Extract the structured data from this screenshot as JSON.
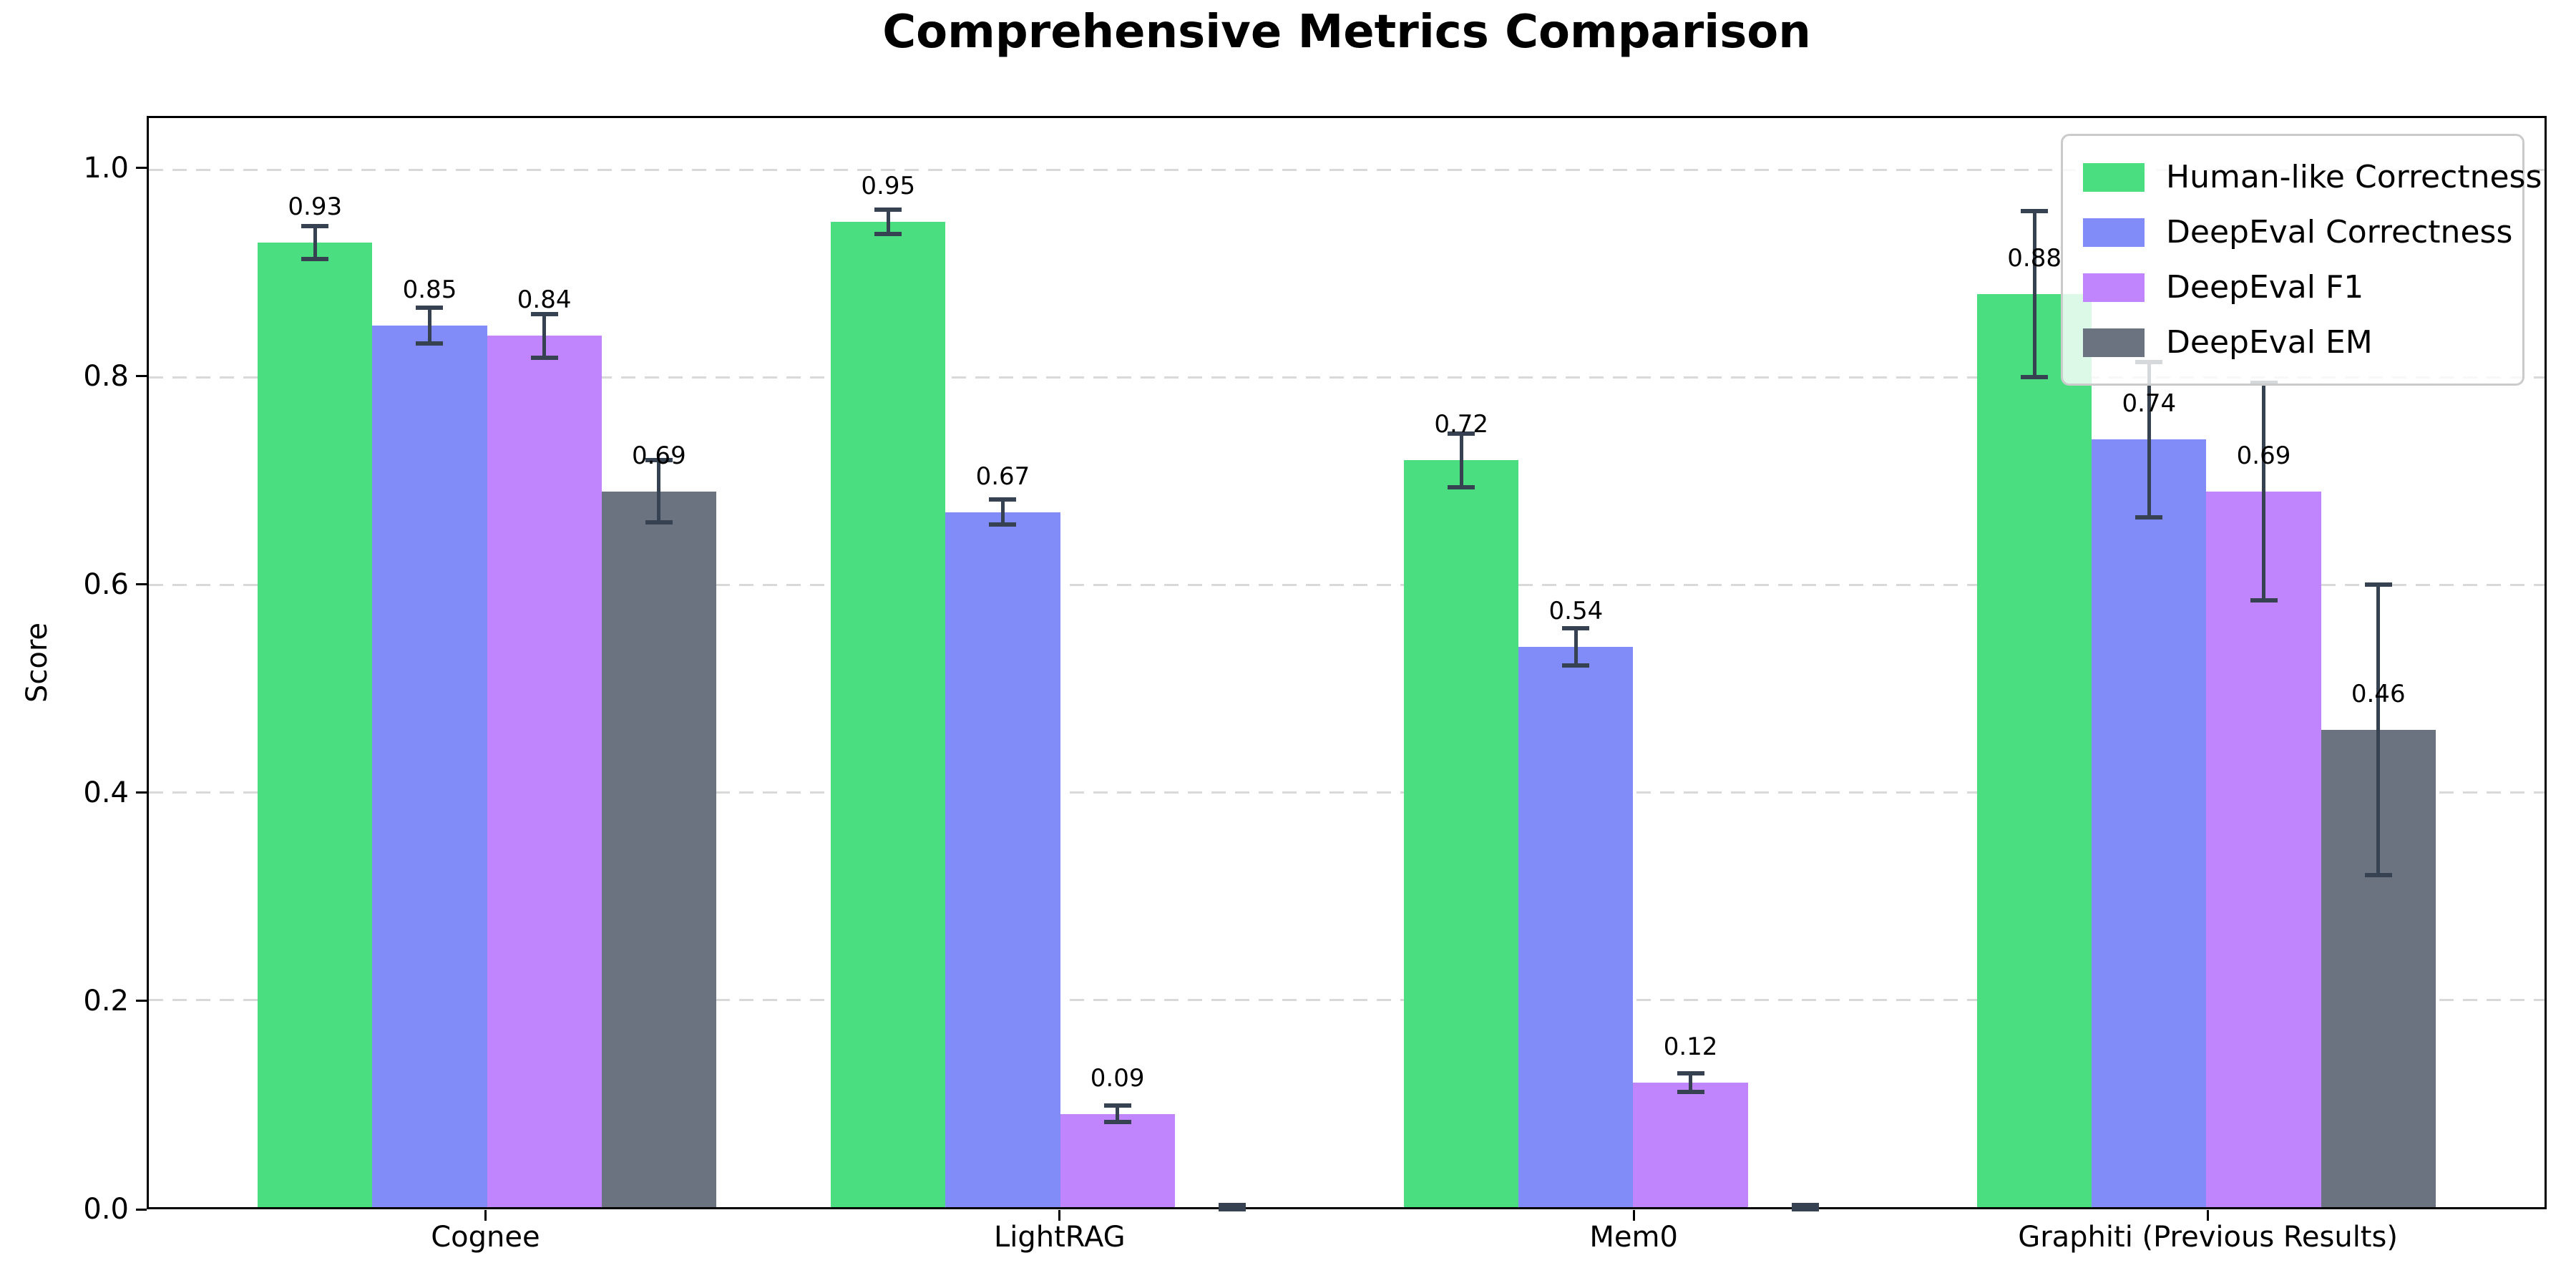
{
  "chart_data": {
    "type": "bar",
    "title": "Comprehensive Metrics Comparison",
    "ylabel": "Score",
    "xlabel": "",
    "categories": [
      "Cognee",
      "LightRAG",
      "Mem0",
      "Graphiti (Previous Results)"
    ],
    "series": [
      {
        "name": "Human-like Correctness",
        "color": "#4ade80",
        "values": [
          0.93,
          0.95,
          0.72,
          0.88
        ],
        "errors": [
          0.016,
          0.012,
          0.026,
          0.08
        ],
        "labels": [
          "0.93",
          "0.95",
          "0.72",
          "0.88"
        ]
      },
      {
        "name": "DeepEval Correctness",
        "color": "#818cf8",
        "values": [
          0.85,
          0.67,
          0.54,
          0.74
        ],
        "errors": [
          0.017,
          0.012,
          0.018,
          0.075
        ],
        "labels": [
          "0.85",
          "0.67",
          "0.54",
          "0.74"
        ]
      },
      {
        "name": "DeepEval F1",
        "color": "#c084fc",
        "values": [
          0.84,
          0.09,
          0.12,
          0.69
        ],
        "errors": [
          0.021,
          0.008,
          0.009,
          0.105
        ],
        "labels": [
          "0.84",
          "0.09",
          "0.12",
          "0.69"
        ]
      },
      {
        "name": "DeepEval EM",
        "color": "#6b7280",
        "values": [
          0.69,
          0.0,
          0.0,
          0.46
        ],
        "errors": [
          0.03,
          0.002,
          0.002,
          0.14
        ],
        "labels": [
          "0.69",
          "",
          "",
          "0.46"
        ]
      }
    ],
    "yticks": [
      {
        "label": "0.0",
        "value": 0.0
      },
      {
        "label": "0.2",
        "value": 0.2
      },
      {
        "label": "0.4",
        "value": 0.4
      },
      {
        "label": "0.6",
        "value": 0.6
      },
      {
        "label": "0.8",
        "value": 0.8
      },
      {
        "label": "1.0",
        "value": 1.0
      }
    ],
    "ylim": [
      0,
      1.05
    ],
    "xlim": [
      -0.59,
      3.59
    ],
    "bar_width": 0.2,
    "grid": "horizontal-dashed",
    "grid_color": "#d9d9d9",
    "error_color": "#364152",
    "background": "#ffffff",
    "legend_position": "top-right"
  }
}
